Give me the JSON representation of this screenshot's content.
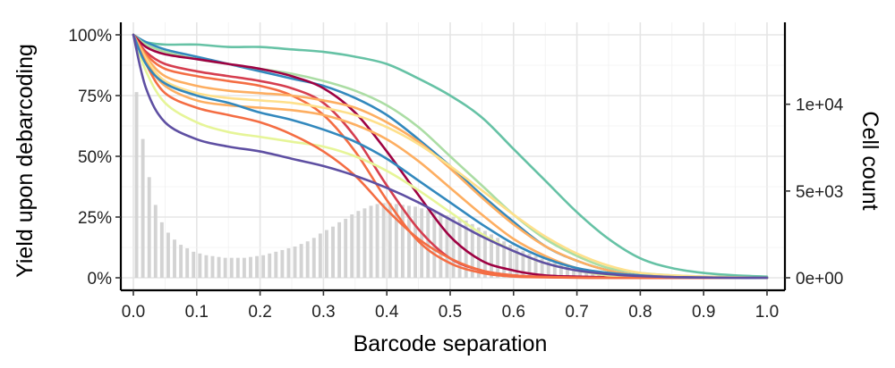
{
  "chart_data": {
    "type": "line",
    "title": "",
    "xlabel": "Barcode separation",
    "ylabel": "Yield upon debarcoding",
    "y2label": "Cell count",
    "xlim": [
      0,
      1
    ],
    "ylim": [
      0,
      100
    ],
    "y2lim": [
      0,
      14000
    ],
    "x_ticks": [
      0.0,
      0.1,
      0.2,
      0.3,
      0.4,
      0.5,
      0.6,
      0.7,
      0.8,
      0.9,
      1.0
    ],
    "x_tick_labels": [
      "0.0",
      "0.1",
      "0.2",
      "0.3",
      "0.4",
      "0.5",
      "0.6",
      "0.7",
      "0.8",
      "0.9",
      "1.0"
    ],
    "y_ticks": [
      0,
      25,
      50,
      75,
      100
    ],
    "y_tick_labels": [
      "0%",
      "25%",
      "50%",
      "75%",
      "100%"
    ],
    "y2_ticks": [
      0,
      5000,
      10000
    ],
    "y2_tick_labels": [
      "0e+00",
      "5e+03",
      "1e+04"
    ],
    "grid": true,
    "legend": "none",
    "histogram": {
      "color": "#d3d3d3",
      "bin_width": 0.01,
      "x": [
        0.005,
        0.015,
        0.025,
        0.035,
        0.045,
        0.055,
        0.065,
        0.075,
        0.085,
        0.095,
        0.105,
        0.115,
        0.125,
        0.135,
        0.145,
        0.155,
        0.165,
        0.175,
        0.185,
        0.195,
        0.205,
        0.215,
        0.225,
        0.235,
        0.245,
        0.255,
        0.265,
        0.275,
        0.285,
        0.295,
        0.305,
        0.315,
        0.325,
        0.335,
        0.345,
        0.355,
        0.365,
        0.375,
        0.385,
        0.395,
        0.405,
        0.415,
        0.425,
        0.435,
        0.445,
        0.455,
        0.465,
        0.475,
        0.485,
        0.495,
        0.505,
        0.515,
        0.525,
        0.535,
        0.545,
        0.555,
        0.565,
        0.575,
        0.585,
        0.595,
        0.605,
        0.615,
        0.625,
        0.635,
        0.645,
        0.655,
        0.665,
        0.675,
        0.685,
        0.695,
        0.705,
        0.715,
        0.725,
        0.735,
        0.745,
        0.755,
        0.765,
        0.775,
        0.785,
        0.795,
        0.805,
        0.815,
        0.825,
        0.835,
        0.845,
        0.855,
        0.865,
        0.875,
        0.885,
        0.895,
        0.905,
        0.915,
        0.925,
        0.935,
        0.945,
        0.955,
        0.965,
        0.975,
        0.985,
        0.995
      ],
      "counts": [
        10700,
        8000,
        5800,
        4200,
        3200,
        2600,
        2200,
        1900,
        1700,
        1500,
        1400,
        1300,
        1250,
        1200,
        1150,
        1150,
        1150,
        1150,
        1200,
        1250,
        1300,
        1400,
        1500,
        1600,
        1700,
        1800,
        1950,
        2100,
        2300,
        2550,
        2750,
        2950,
        3200,
        3400,
        3650,
        3850,
        4000,
        4150,
        4250,
        4300,
        4300,
        4250,
        4200,
        4150,
        4100,
        4000,
        3900,
        3800,
        3700,
        3600,
        3500,
        3400,
        3300,
        3100,
        2900,
        2700,
        2500,
        2300,
        2100,
        1900,
        1700,
        1550,
        1400,
        1250,
        1100,
        950,
        850,
        750,
        650,
        550,
        480,
        420,
        360,
        300,
        250,
        200,
        160,
        120,
        80,
        50,
        30,
        20,
        10,
        5,
        0,
        0,
        0,
        0,
        0,
        0,
        0,
        0,
        0,
        0,
        0,
        0,
        0,
        0,
        0,
        0
      ]
    },
    "series": [
      {
        "color": "#66c2a5",
        "x": [
          0,
          0.02,
          0.05,
          0.1,
          0.15,
          0.2,
          0.25,
          0.3,
          0.35,
          0.4,
          0.45,
          0.5,
          0.55,
          0.6,
          0.65,
          0.7,
          0.75,
          0.8,
          0.85,
          0.9,
          0.95,
          1.0
        ],
        "y": [
          100,
          97,
          96,
          96,
          95,
          95,
          94,
          93,
          91,
          88,
          82,
          75,
          66,
          53,
          40,
          27,
          16,
          8,
          4,
          2,
          1,
          0.5
        ]
      },
      {
        "color": "#3288bd",
        "x": [
          0,
          0.02,
          0.05,
          0.1,
          0.15,
          0.2,
          0.25,
          0.3,
          0.35,
          0.4,
          0.45,
          0.5,
          0.55,
          0.6,
          0.65,
          0.7,
          0.75,
          0.8,
          0.85,
          0.9,
          0.95,
          1.0
        ],
        "y": [
          100,
          97,
          94,
          91,
          88,
          85,
          82,
          79,
          74,
          67,
          57,
          46,
          34,
          23,
          13,
          7,
          3,
          1,
          0.5,
          0.2,
          0.1,
          0
        ]
      },
      {
        "color": "#abdda4",
        "x": [
          0,
          0.02,
          0.05,
          0.1,
          0.15,
          0.2,
          0.25,
          0.3,
          0.35,
          0.4,
          0.45,
          0.5,
          0.55,
          0.6,
          0.65,
          0.7,
          0.75,
          0.8,
          0.85,
          0.9,
          0.95,
          1.0
        ],
        "y": [
          100,
          96,
          93,
          90,
          88,
          86,
          84,
          81,
          77,
          71,
          62,
          50,
          38,
          26,
          16,
          9,
          4,
          2,
          1,
          0.5,
          0.2,
          0
        ]
      },
      {
        "color": "#9e0142",
        "x": [
          0,
          0.02,
          0.05,
          0.1,
          0.15,
          0.2,
          0.25,
          0.3,
          0.35,
          0.4,
          0.45,
          0.5,
          0.55,
          0.6,
          0.65,
          0.7,
          0.75,
          0.8,
          0.85,
          0.9,
          0.95,
          1.0
        ],
        "y": [
          100,
          95,
          92,
          90,
          88,
          86,
          83,
          78,
          68,
          52,
          34,
          17,
          7,
          3,
          1,
          0.5,
          0.2,
          0,
          0,
          0,
          0,
          0
        ]
      },
      {
        "color": "#d53e4f",
        "x": [
          0,
          0.02,
          0.05,
          0.1,
          0.15,
          0.2,
          0.25,
          0.3,
          0.35,
          0.4,
          0.45,
          0.5,
          0.55,
          0.6,
          0.65,
          0.7,
          0.75,
          0.8,
          0.85,
          0.9,
          0.95,
          1.0
        ],
        "y": [
          100,
          93,
          88,
          85,
          83,
          81,
          78,
          72,
          58,
          38,
          20,
          8,
          3,
          1,
          0.3,
          0.1,
          0,
          0,
          0,
          0,
          0,
          0
        ]
      },
      {
        "color": "#f46d43",
        "x": [
          0,
          0.02,
          0.05,
          0.1,
          0.15,
          0.2,
          0.25,
          0.3,
          0.35,
          0.4,
          0.45,
          0.5,
          0.55,
          0.6,
          0.65,
          0.7,
          0.75,
          0.8,
          0.85,
          0.9,
          0.95,
          1.0
        ],
        "y": [
          100,
          92,
          86,
          83,
          81,
          79,
          75,
          67,
          52,
          32,
          15,
          6,
          2,
          0.5,
          0.2,
          0,
          0,
          0,
          0,
          0,
          0,
          0
        ]
      },
      {
        "color": "#fdae61",
        "x": [
          0,
          0.02,
          0.05,
          0.1,
          0.15,
          0.2,
          0.25,
          0.3,
          0.35,
          0.4,
          0.45,
          0.5,
          0.55,
          0.6,
          0.65,
          0.7,
          0.75,
          0.8,
          0.85,
          0.9,
          0.95,
          1.0
        ],
        "y": [
          100,
          91,
          83,
          79,
          77,
          76,
          75,
          73,
          70,
          64,
          56,
          45,
          33,
          22,
          13,
          7,
          3,
          1,
          0.5,
          0.2,
          0,
          0
        ]
      },
      {
        "color": "#fee08b",
        "x": [
          0,
          0.02,
          0.05,
          0.1,
          0.15,
          0.2,
          0.25,
          0.3,
          0.35,
          0.4,
          0.45,
          0.5,
          0.55,
          0.6,
          0.65,
          0.7,
          0.75,
          0.8,
          0.85,
          0.9,
          0.95,
          1.0
        ],
        "y": [
          100,
          90,
          81,
          76,
          74,
          73,
          72,
          70,
          67,
          62,
          55,
          46,
          36,
          26,
          17,
          10,
          5,
          2,
          1,
          0.5,
          0.2,
          0
        ]
      },
      {
        "color": "#fdae61",
        "x": [
          0,
          0.02,
          0.05,
          0.1,
          0.15,
          0.2,
          0.25,
          0.3,
          0.35,
          0.4,
          0.45,
          0.5,
          0.55,
          0.6,
          0.65,
          0.7,
          0.75,
          0.8,
          0.85,
          0.9,
          0.95,
          1.0
        ],
        "y": [
          100,
          89,
          79,
          73,
          71,
          70,
          69,
          67,
          63,
          57,
          48,
          37,
          26,
          16,
          9,
          4,
          2,
          1,
          0.3,
          0.1,
          0,
          0
        ]
      },
      {
        "color": "#e6f598",
        "x": [
          0,
          0.02,
          0.05,
          0.1,
          0.15,
          0.2,
          0.25,
          0.3,
          0.35,
          0.4,
          0.45,
          0.5,
          0.55,
          0.6,
          0.65,
          0.7,
          0.75,
          0.8,
          0.85,
          0.9,
          0.95,
          1.0
        ],
        "y": [
          100,
          85,
          72,
          64,
          60,
          58,
          56,
          54,
          50,
          44,
          36,
          27,
          18,
          11,
          6,
          3,
          1,
          0.5,
          0.2,
          0.1,
          0,
          0
        ]
      },
      {
        "color": "#f46d43",
        "x": [
          0,
          0.02,
          0.05,
          0.1,
          0.15,
          0.2,
          0.25,
          0.3,
          0.35,
          0.4,
          0.45,
          0.5,
          0.55,
          0.6,
          0.65,
          0.7,
          0.75,
          0.8,
          0.85,
          0.9,
          0.95,
          1.0
        ],
        "y": [
          100,
          88,
          76,
          70,
          67,
          64,
          59,
          52,
          42,
          28,
          16,
          8,
          3,
          1,
          0.4,
          0.1,
          0,
          0,
          0,
          0,
          0,
          0
        ]
      },
      {
        "color": "#3288bd",
        "x": [
          0,
          0.02,
          0.05,
          0.1,
          0.15,
          0.2,
          0.25,
          0.3,
          0.35,
          0.4,
          0.45,
          0.5,
          0.55,
          0.6,
          0.65,
          0.7,
          0.75,
          0.8,
          0.85,
          0.9,
          0.95,
          1.0
        ],
        "y": [
          100,
          88,
          80,
          75,
          72,
          68,
          65,
          61,
          56,
          49,
          40,
          31,
          22,
          14,
          8,
          4,
          2,
          1,
          0.3,
          0.1,
          0,
          0
        ]
      },
      {
        "color": "#5e4fa2",
        "x": [
          0,
          0.02,
          0.05,
          0.1,
          0.15,
          0.2,
          0.25,
          0.3,
          0.35,
          0.4,
          0.45,
          0.5,
          0.55,
          0.6,
          0.65,
          0.7,
          0.75,
          0.8,
          0.85,
          0.9,
          0.95,
          1.0
        ],
        "y": [
          100,
          78,
          64,
          57,
          54,
          52,
          49,
          46,
          42,
          37,
          31,
          24,
          17,
          11,
          6,
          3,
          1.5,
          0.7,
          0.3,
          0.1,
          0,
          0
        ]
      }
    ]
  }
}
